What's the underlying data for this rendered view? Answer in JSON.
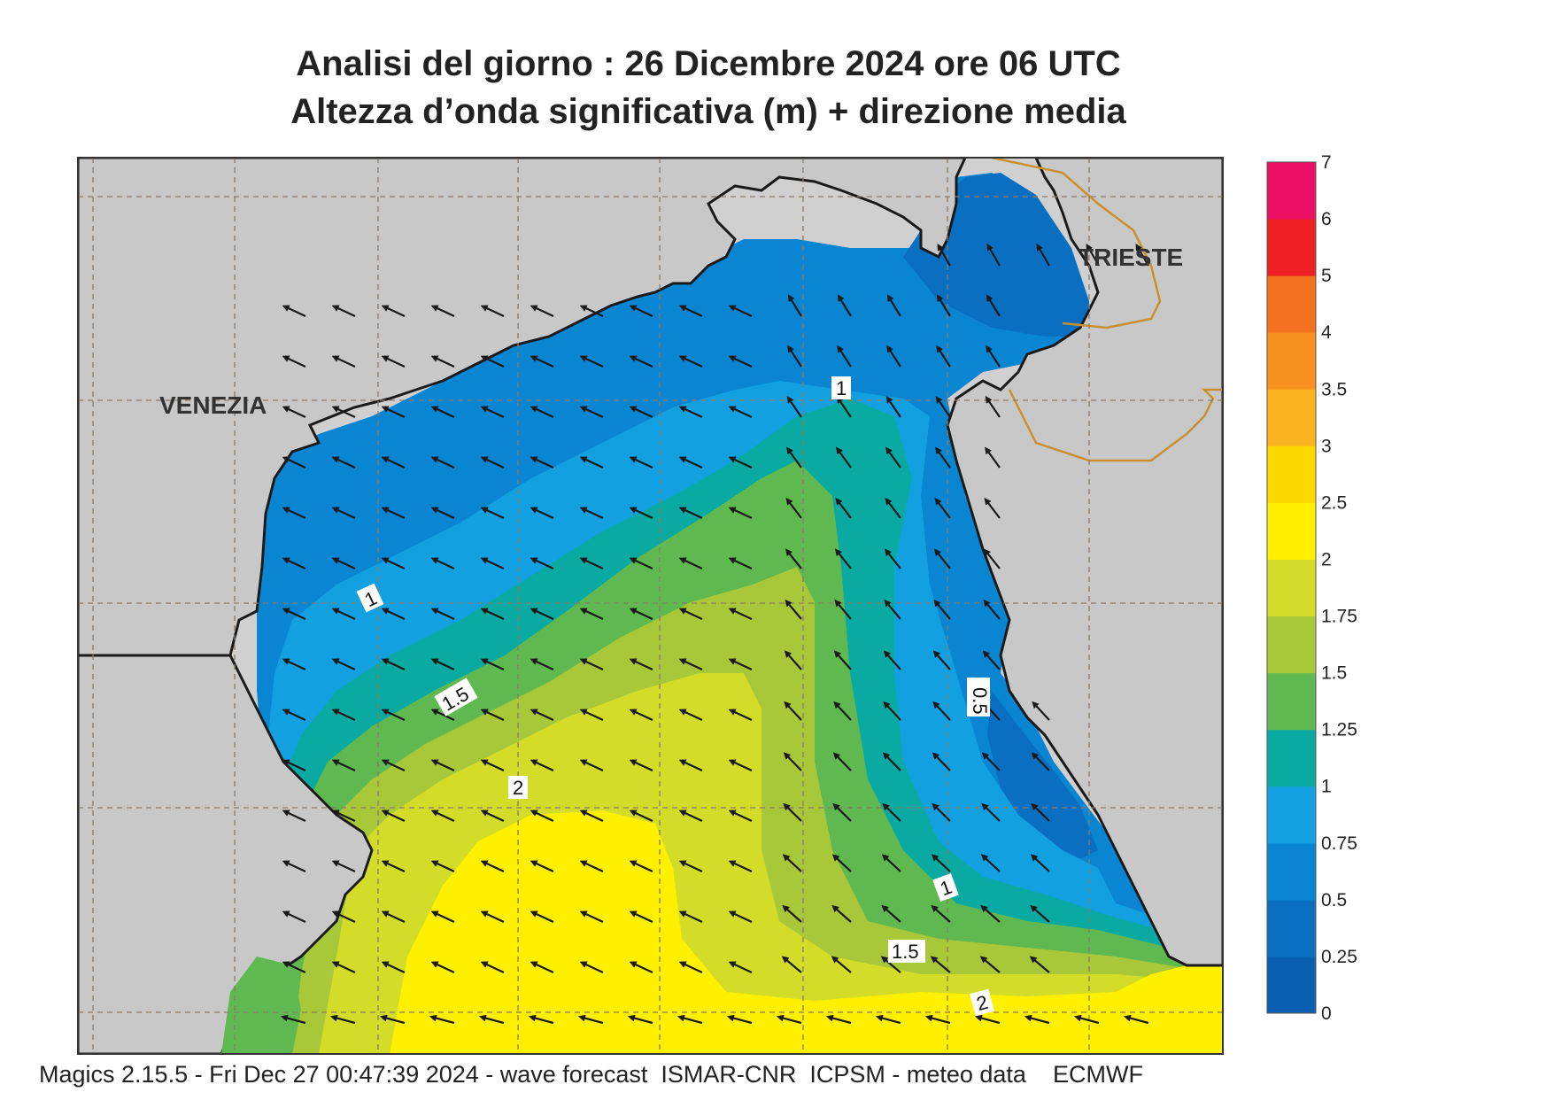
{
  "title_line1": "Analisi del giorno :  26 Dicembre  2024   ore 06 UTC",
  "title_line2": "Altezza d’onda significativa (m) + direzione media",
  "footer": "Magics 2.15.5 - Fri Dec 27 00:47:39 2024 - wave forecast  ISMAR-CNR  ICPSM - meteo data    ECMWF",
  "cities": [
    {
      "name": "VENEZIA"
    },
    {
      "name": "TRIESTE"
    }
  ],
  "colorbar": {
    "levels": [
      "0",
      "0.25",
      "0.5",
      "0.75",
      "1",
      "1.25",
      "1.5",
      "1.75",
      "2",
      "2.5",
      "3",
      "3.5",
      "4",
      "5",
      "6",
      "7"
    ],
    "colors": [
      "#0b5fb0",
      "#0a6fc0",
      "#0985d2",
      "#12a0e0",
      "#0aaaa3",
      "#5fb950",
      "#a8c83a",
      "#d4dc2a",
      "#fff000",
      "#fbd800",
      "#f9b41f",
      "#f6901f",
      "#f27220",
      "#ed2024",
      "#ea1063"
    ]
  },
  "contour_labels": [
    "1",
    "1",
    "1.5",
    "2",
    "0.5",
    "1",
    "1.5",
    "2"
  ],
  "colors": {
    "land": "#d0d0d0",
    "coast": "#1a1a1a",
    "border": "#c8902e",
    "grid": "#8a7a66"
  }
}
